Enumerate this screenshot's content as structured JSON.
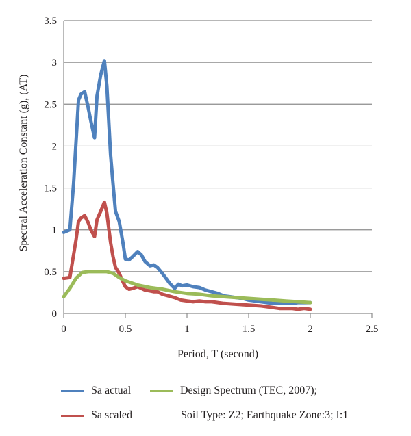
{
  "chart_data": {
    "type": "line",
    "xlabel": "Period, T (second)",
    "ylabel": "Spectral Acceleration Constant (g), (AT)",
    "xlim": [
      0,
      2.5
    ],
    "ylim": [
      0,
      3.5
    ],
    "xticks": [
      "0",
      "0.5",
      "1",
      "1.5",
      "2",
      "2.5"
    ],
    "yticks": [
      "0",
      "0.5",
      "1",
      "1.5",
      "2",
      "2.5",
      "3",
      "3.5"
    ],
    "grid": "horizontal",
    "legend_position": "bottom",
    "series": [
      {
        "name": "Sa actual",
        "color": "#4f81bd",
        "x": [
          0,
          0.05,
          0.08,
          0.1,
          0.12,
          0.14,
          0.17,
          0.2,
          0.22,
          0.25,
          0.27,
          0.3,
          0.33,
          0.35,
          0.38,
          0.4,
          0.42,
          0.45,
          0.48,
          0.5,
          0.53,
          0.56,
          0.6,
          0.63,
          0.66,
          0.7,
          0.73,
          0.76,
          0.8,
          0.83,
          0.86,
          0.9,
          0.93,
          0.96,
          1.0,
          1.05,
          1.1,
          1.15,
          1.2,
          1.25,
          1.3,
          1.35,
          1.4,
          1.45,
          1.5,
          1.55,
          1.6,
          1.65,
          1.7,
          1.75,
          1.8,
          1.85,
          1.9,
          1.95,
          2.0
        ],
        "values": [
          0.97,
          1.0,
          1.55,
          2.05,
          2.55,
          2.62,
          2.65,
          2.45,
          2.3,
          2.1,
          2.6,
          2.85,
          3.02,
          2.72,
          1.9,
          1.55,
          1.22,
          1.1,
          0.85,
          0.65,
          0.64,
          0.68,
          0.74,
          0.7,
          0.62,
          0.57,
          0.58,
          0.55,
          0.48,
          0.42,
          0.36,
          0.3,
          0.35,
          0.33,
          0.34,
          0.32,
          0.31,
          0.28,
          0.26,
          0.24,
          0.21,
          0.2,
          0.19,
          0.18,
          0.16,
          0.15,
          0.14,
          0.13,
          0.12,
          0.12,
          0.12,
          0.12,
          0.13,
          0.13,
          0.13
        ]
      },
      {
        "name": "Sa scaled",
        "color": "#c0504d",
        "x": [
          0,
          0.05,
          0.08,
          0.1,
          0.12,
          0.14,
          0.17,
          0.2,
          0.22,
          0.25,
          0.27,
          0.3,
          0.33,
          0.35,
          0.38,
          0.4,
          0.42,
          0.45,
          0.48,
          0.5,
          0.53,
          0.56,
          0.6,
          0.63,
          0.66,
          0.7,
          0.73,
          0.76,
          0.8,
          0.85,
          0.9,
          0.95,
          1.0,
          1.05,
          1.1,
          1.15,
          1.2,
          1.3,
          1.4,
          1.5,
          1.6,
          1.7,
          1.75,
          1.8,
          1.85,
          1.9,
          1.95,
          2.0
        ],
        "values": [
          0.42,
          0.43,
          0.7,
          0.88,
          1.1,
          1.14,
          1.17,
          1.08,
          1.0,
          0.92,
          1.12,
          1.22,
          1.33,
          1.2,
          0.85,
          0.68,
          0.55,
          0.48,
          0.38,
          0.32,
          0.29,
          0.3,
          0.32,
          0.3,
          0.28,
          0.27,
          0.26,
          0.26,
          0.23,
          0.21,
          0.19,
          0.16,
          0.15,
          0.14,
          0.15,
          0.14,
          0.14,
          0.12,
          0.11,
          0.1,
          0.09,
          0.07,
          0.06,
          0.06,
          0.06,
          0.05,
          0.06,
          0.05
        ]
      },
      {
        "name": "Design Spectrum (TEC, 2007);",
        "color": "#9bbb59",
        "x": [
          0,
          0.05,
          0.1,
          0.15,
          0.2,
          0.25,
          0.3,
          0.35,
          0.4,
          0.45,
          0.5,
          0.6,
          0.7,
          0.8,
          0.9,
          1.0,
          1.1,
          1.2,
          1.3,
          1.4,
          1.5,
          1.6,
          1.7,
          1.8,
          1.9,
          2.0
        ],
        "values": [
          0.2,
          0.3,
          0.42,
          0.49,
          0.5,
          0.5,
          0.5,
          0.5,
          0.48,
          0.43,
          0.39,
          0.34,
          0.31,
          0.29,
          0.26,
          0.24,
          0.23,
          0.21,
          0.2,
          0.19,
          0.18,
          0.17,
          0.16,
          0.15,
          0.14,
          0.13
        ]
      }
    ]
  },
  "legend_note": "Soil Type: Z2; Earthquake Zone:3; I:1"
}
